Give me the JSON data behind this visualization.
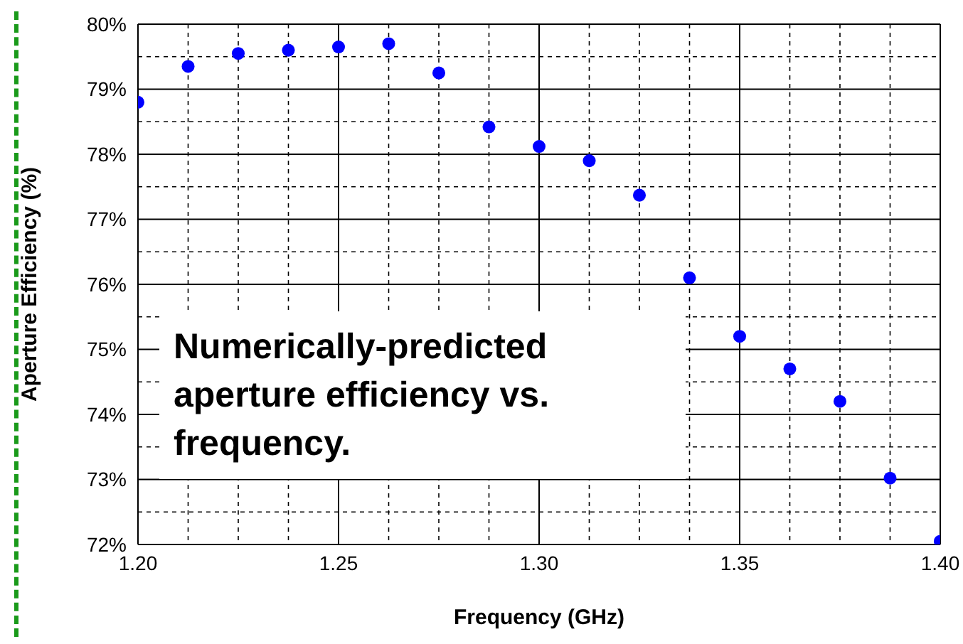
{
  "chart_data": {
    "type": "scatter",
    "xlabel": "Frequency (GHz)",
    "ylabel": "Aperture Efficiency (%)",
    "annotations": [
      "Numerically-predicted aperture efficiency vs. frequency."
    ],
    "x": [
      1.2,
      1.2125,
      1.225,
      1.2375,
      1.25,
      1.2625,
      1.275,
      1.2875,
      1.3,
      1.3125,
      1.325,
      1.3375,
      1.35,
      1.3625,
      1.375,
      1.3875,
      1.4
    ],
    "series": [
      {
        "color": "#0000ff",
        "values": [
          78.8,
          79.35,
          79.55,
          79.6,
          79.65,
          79.7,
          79.25,
          78.42,
          78.12,
          77.9,
          77.37,
          76.1,
          75.2,
          74.7,
          74.2,
          73.02,
          72.05
        ]
      }
    ],
    "xlim": [
      1.2,
      1.4
    ],
    "xticks": [
      {
        "value": 1.2,
        "label": "1.20"
      },
      {
        "value": 1.25,
        "label": "1.25"
      },
      {
        "value": 1.3,
        "label": "1.30"
      },
      {
        "value": 1.35,
        "label": "1.35"
      },
      {
        "value": 1.4,
        "label": "1.40"
      }
    ],
    "ylim": [
      72,
      80
    ],
    "yticks": [
      {
        "value": 72,
        "label": "72%"
      },
      {
        "value": 73,
        "label": "73%"
      },
      {
        "value": 74,
        "label": "74%"
      },
      {
        "value": 75,
        "label": "75%"
      },
      {
        "value": 76,
        "label": "76%"
      },
      {
        "value": 77,
        "label": "77%"
      },
      {
        "value": 78,
        "label": "78%"
      },
      {
        "value": 79,
        "label": "79%"
      },
      {
        "value": 80,
        "label": "80%"
      }
    ],
    "grid": true,
    "marker": "circle",
    "legend": false
  }
}
